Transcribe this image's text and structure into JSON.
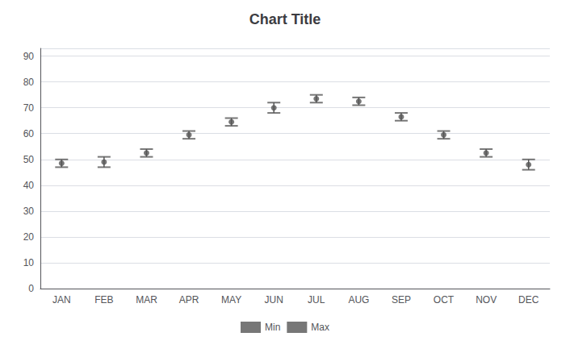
{
  "chart_data": {
    "type": "dumbbell",
    "title": "Chart Title",
    "categories": [
      "JAN",
      "FEB",
      "MAR",
      "APR",
      "MAY",
      "JUN",
      "JUL",
      "AUG",
      "SEP",
      "OCT",
      "NOV",
      "DEC"
    ],
    "series": [
      {
        "name": "Min",
        "values": [
          47,
          47,
          51,
          58,
          63,
          68,
          72,
          71,
          65,
          58,
          51,
          46
        ]
      },
      {
        "name": "Max",
        "values": [
          50,
          51,
          54,
          61,
          66,
          72,
          75,
          74,
          68,
          61,
          54,
          50
        ]
      }
    ],
    "mid_values": [
      48.5,
      49,
      52.5,
      59.5,
      64.5,
      70,
      73.5,
      72.5,
      66.5,
      59.5,
      52.5,
      48
    ],
    "color": "#555555",
    "ylim": [
      0,
      93
    ],
    "yticks": [
      0,
      10,
      20,
      30,
      40,
      50,
      60,
      70,
      80,
      90
    ],
    "grid": true,
    "legend": "bottom"
  }
}
